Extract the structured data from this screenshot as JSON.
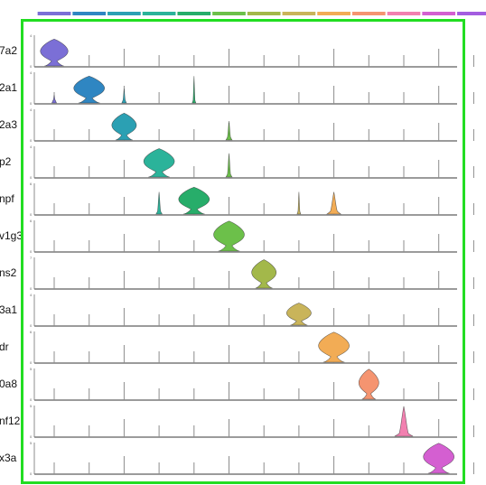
{
  "chart_data": {
    "type": "violin",
    "title": "",
    "xlabel": "",
    "ylabel": "",
    "grid": false,
    "legend": "top color bar",
    "clusters": [
      {
        "id": 1,
        "color": "#7b6fd6"
      },
      {
        "id": 2,
        "color": "#2f86c2"
      },
      {
        "id": 3,
        "color": "#2ba0b3"
      },
      {
        "id": 4,
        "color": "#2bb39a"
      },
      {
        "id": 5,
        "color": "#27ad6a"
      },
      {
        "id": 6,
        "color": "#6cc04a"
      },
      {
        "id": 7,
        "color": "#a3b84a"
      },
      {
        "id": 8,
        "color": "#c9b45a"
      },
      {
        "id": 9,
        "color": "#f2ac55"
      },
      {
        "id": 10,
        "color": "#f59470"
      },
      {
        "id": 11,
        "color": "#f280b0"
      },
      {
        "id": 12,
        "color": "#d45fd1"
      },
      {
        "id": 13,
        "color": "#a35de0"
      }
    ],
    "genes": [
      {
        "label": "7a2",
        "ymax_tick": "4",
        "violins": [
          {
            "cluster": 1,
            "height": 0.85,
            "width": 0.9,
            "shape": "broad"
          }
        ]
      },
      {
        "label": "2a1",
        "ymax_tick": "4",
        "violins": [
          {
            "cluster": 1,
            "height": 0.25,
            "width": 0.15,
            "shape": "narrow"
          },
          {
            "cluster": 2,
            "height": 0.85,
            "width": 1.0,
            "shape": "broad"
          },
          {
            "cluster": 3,
            "height": 0.45,
            "width": 0.15,
            "shape": "narrow"
          },
          {
            "cluster": 5,
            "height": 0.85,
            "width": 0.05,
            "shape": "narrow"
          }
        ]
      },
      {
        "label": "2a3",
        "ymax_tick": "4",
        "violins": [
          {
            "cluster": 3,
            "height": 0.85,
            "width": 0.8,
            "shape": "broad"
          },
          {
            "cluster": 6,
            "height": 0.6,
            "width": 0.2,
            "shape": "narrow"
          }
        ]
      },
      {
        "label": "p2",
        "ymax_tick": "4",
        "violins": [
          {
            "cluster": 4,
            "height": 0.9,
            "width": 1.0,
            "shape": "broad"
          },
          {
            "cluster": 6,
            "height": 0.75,
            "width": 0.2,
            "shape": "narrow"
          }
        ]
      },
      {
        "label": "npf",
        "ymax_tick": "6",
        "violins": [
          {
            "cluster": 4,
            "height": 0.7,
            "width": 0.2,
            "shape": "narrow"
          },
          {
            "cluster": 5,
            "height": 0.85,
            "width": 1.0,
            "shape": "broad"
          },
          {
            "cluster": 8,
            "height": 0.7,
            "width": 0.1,
            "shape": "narrow"
          },
          {
            "cluster": 9,
            "height": 0.7,
            "width": 0.45,
            "shape": "narrow"
          }
        ]
      },
      {
        "label": "v1g3",
        "ymax_tick": "6",
        "violins": [
          {
            "cluster": 6,
            "height": 0.95,
            "width": 1.0,
            "shape": "broad"
          }
        ]
      },
      {
        "label": "ns2",
        "ymax_tick": "7",
        "violins": [
          {
            "cluster": 7,
            "height": 0.9,
            "width": 0.8,
            "shape": "broad"
          }
        ]
      },
      {
        "label": "3a1",
        "ymax_tick": "4",
        "violins": [
          {
            "cluster": 8,
            "height": 0.7,
            "width": 0.8,
            "shape": "broad"
          }
        ]
      },
      {
        "label": "dr",
        "ymax_tick": "6",
        "violins": [
          {
            "cluster": 9,
            "height": 0.95,
            "width": 1.0,
            "shape": "broad"
          }
        ]
      },
      {
        "label": "0a8",
        "ymax_tick": "5",
        "violins": [
          {
            "cluster": 10,
            "height": 0.95,
            "width": 0.65,
            "shape": "broad"
          }
        ]
      },
      {
        "label": "nf12",
        "ymax_tick": "5",
        "violins": [
          {
            "cluster": 11,
            "height": 0.95,
            "width": 0.6,
            "shape": "narrow"
          }
        ]
      },
      {
        "label": "x3a",
        "ymax_tick": "5",
        "violins": [
          {
            "cluster": 12,
            "height": 0.95,
            "width": 1.0,
            "shape": "broad"
          }
        ]
      }
    ]
  }
}
